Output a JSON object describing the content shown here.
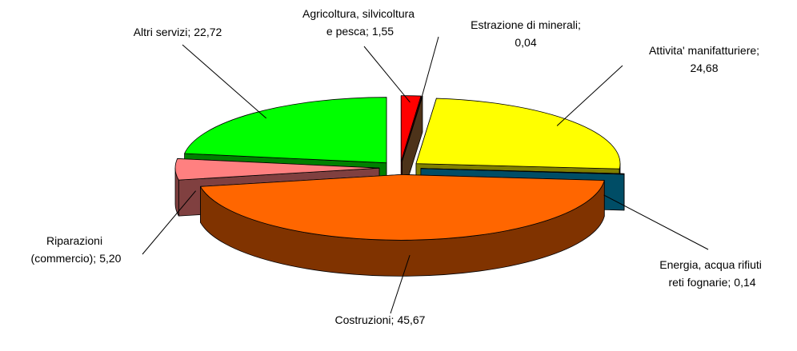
{
  "chart_data": {
    "type": "pie3d",
    "categories": [
      "Agricoltura, silvicoltura e pesca;",
      "Estrazione di minerali;",
      "Attivita' manifatturiere;",
      "Energia, acqua rifiuti reti fognarie;",
      "Costruzioni;",
      "Riparazioni (commercio);",
      "Altri servizi;"
    ],
    "values": [
      1.55,
      0.04,
      24.68,
      0.14,
      45.67,
      5.2,
      22.72
    ],
    "value_labels": [
      "1,55",
      "0,04",
      "24,68",
      "0,14",
      "45,67",
      "5,20",
      "22,72"
    ],
    "colors": [
      "#ff0000",
      "#996633",
      "#ffff00",
      "#0099cc",
      "#ff6600",
      "#ff8080",
      "#00ff00"
    ]
  }
}
